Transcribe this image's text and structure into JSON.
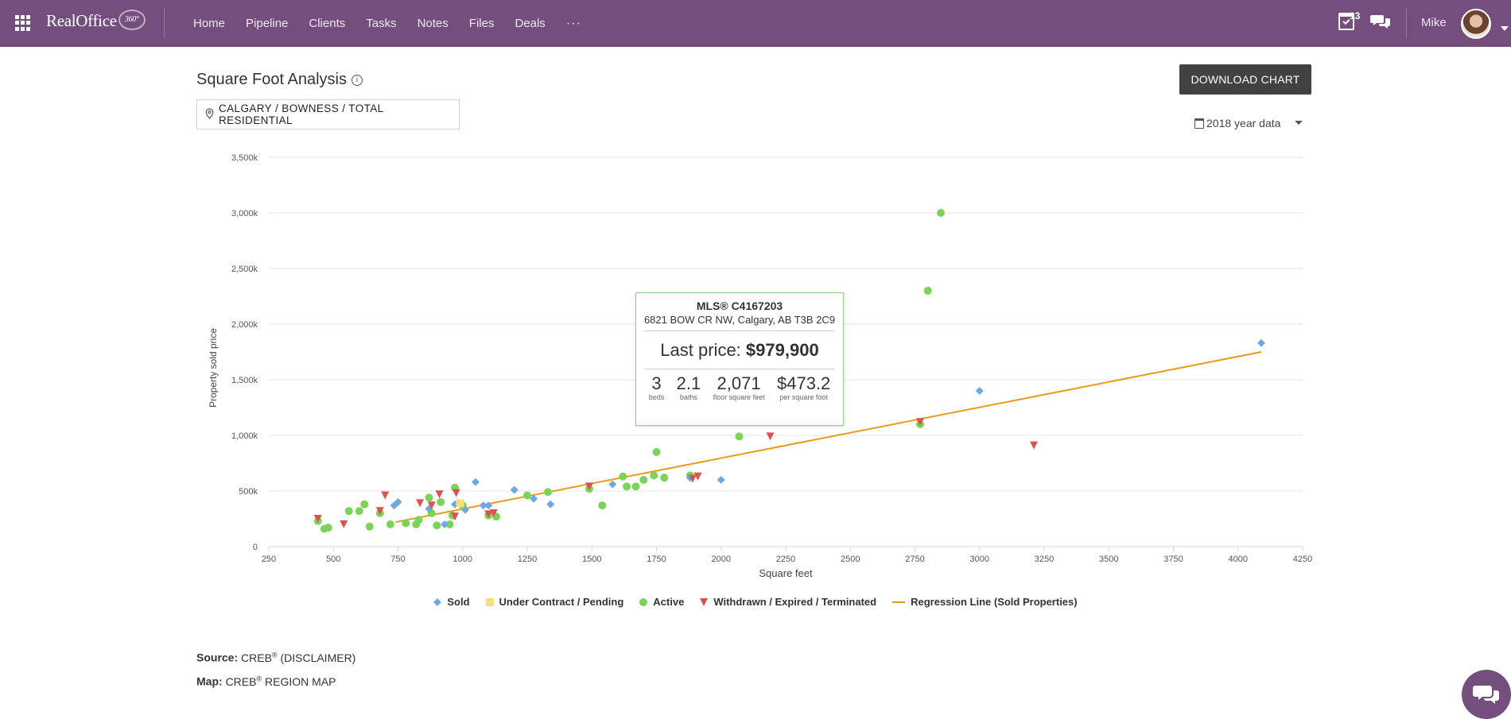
{
  "header": {
    "brand_name": "RealOffice",
    "brand_badge": "360°",
    "nav": [
      "Home",
      "Pipeline",
      "Clients",
      "Tasks",
      "Notes",
      "Files",
      "Deals"
    ],
    "more_label": "···",
    "notification_count": "13",
    "user_name": "Mike",
    "icons": [
      "apps-grid-icon",
      "calendar-check-icon",
      "chat-bubbles-icon",
      "avatar",
      "chevron-down-icon"
    ]
  },
  "page": {
    "title": "Square Foot Analysis",
    "download_label": "DOWNLOAD CHART",
    "location": "CALGARY / BOWNESS / TOTAL RESIDENTIAL",
    "year_label": "2018 year data"
  },
  "tooltip": {
    "mls": "MLS® C4167203",
    "address": "6821 BOW CR NW, Calgary, AB T3B 2C9",
    "price_label": "Last price:",
    "price_value": "$979,900",
    "beds": "3",
    "beds_label": "beds",
    "baths": "2.1",
    "baths_label": "baths",
    "sqft": "2,071",
    "sqft_label": "floor square feet",
    "ppsf": "$473.2",
    "ppsf_label": "per square foot"
  },
  "footer": {
    "source_label": "Source:",
    "source_text": "CREB",
    "source_sup": "®",
    "source_suffix": " (DISCLAIMER)",
    "map_label": "Map:",
    "map_text": "CREB",
    "map_sup": "®",
    "map_suffix": " REGION MAP"
  },
  "colors": {
    "header": "#744f7e",
    "sold": "#6ea8e0",
    "pending": "#f5e07a",
    "active": "#7dd35a",
    "withdrawn": "#d9534f",
    "regression": "#e89b1a"
  },
  "chart_data": {
    "type": "scatter",
    "xlabel": "Square feet",
    "ylabel": "Property sold price",
    "xlim": [
      250,
      4250
    ],
    "ylim": [
      0,
      3500000
    ],
    "x_ticks": [
      250,
      500,
      750,
      1000,
      1250,
      1500,
      1750,
      2000,
      2250,
      2500,
      2750,
      3000,
      3250,
      3500,
      3750,
      4000,
      4250
    ],
    "y_ticks": [
      0,
      500000,
      1000000,
      1500000,
      2000000,
      2500000,
      3000000,
      3500000
    ],
    "y_tick_labels": [
      "0",
      "500k",
      "1,000k",
      "1,500k",
      "2,000k",
      "2,500k",
      "3,000k",
      "3,500k"
    ],
    "grid": "horizontal",
    "legend": "bottom-center",
    "series": [
      {
        "name": "Sold",
        "marker": "diamond",
        "points": [
          [
            735,
            370000
          ],
          [
            750,
            400000
          ],
          [
            870,
            340000
          ],
          [
            930,
            200000
          ],
          [
            970,
            380000
          ],
          [
            1010,
            330000
          ],
          [
            1050,
            580000
          ],
          [
            1080,
            370000
          ],
          [
            1100,
            370000
          ],
          [
            1200,
            510000
          ],
          [
            1275,
            430000
          ],
          [
            1340,
            380000
          ],
          [
            1580,
            560000
          ],
          [
            1880,
            620000
          ],
          [
            2000,
            600000
          ],
          [
            3000,
            1400000
          ],
          [
            4090,
            1830000
          ]
        ]
      },
      {
        "name": "Under Contract / Pending",
        "marker": "square",
        "points": [
          [
            990,
            390000
          ]
        ]
      },
      {
        "name": "Active",
        "marker": "circle",
        "points": [
          [
            440,
            230000
          ],
          [
            465,
            160000
          ],
          [
            480,
            170000
          ],
          [
            560,
            320000
          ],
          [
            600,
            320000
          ],
          [
            620,
            380000
          ],
          [
            640,
            180000
          ],
          [
            680,
            300000
          ],
          [
            720,
            200000
          ],
          [
            780,
            210000
          ],
          [
            820,
            200000
          ],
          [
            830,
            240000
          ],
          [
            870,
            440000
          ],
          [
            880,
            300000
          ],
          [
            900,
            190000
          ],
          [
            915,
            400000
          ],
          [
            950,
            200000
          ],
          [
            960,
            280000
          ],
          [
            970,
            530000
          ],
          [
            1000,
            370000
          ],
          [
            1100,
            280000
          ],
          [
            1130,
            270000
          ],
          [
            1250,
            460000
          ],
          [
            1330,
            490000
          ],
          [
            1490,
            520000
          ],
          [
            1540,
            370000
          ],
          [
            1620,
            630000
          ],
          [
            1635,
            540000
          ],
          [
            1670,
            540000
          ],
          [
            1700,
            600000
          ],
          [
            1740,
            640000
          ],
          [
            1750,
            850000
          ],
          [
            1780,
            620000
          ],
          [
            1880,
            640000
          ],
          [
            2070,
            990000
          ],
          [
            2770,
            1100000
          ],
          [
            2800,
            2300000
          ],
          [
            2850,
            3000000
          ]
        ]
      },
      {
        "name": "Withdrawn / Expired / Terminated",
        "marker": "triangle-down",
        "points": [
          [
            440,
            250000
          ],
          [
            540,
            200000
          ],
          [
            680,
            320000
          ],
          [
            700,
            460000
          ],
          [
            835,
            390000
          ],
          [
            880,
            370000
          ],
          [
            910,
            470000
          ],
          [
            970,
            270000
          ],
          [
            975,
            480000
          ],
          [
            1100,
            290000
          ],
          [
            1120,
            300000
          ],
          [
            1490,
            540000
          ],
          [
            1890,
            610000
          ],
          [
            1910,
            630000
          ],
          [
            2190,
            990000
          ],
          [
            2770,
            1120000
          ],
          [
            3210,
            910000
          ]
        ]
      },
      {
        "name": "Regression Line (Sold Properties)",
        "marker": "line",
        "points": [
          [
            740,
            220000
          ],
          [
            4090,
            1750000
          ]
        ]
      }
    ],
    "highlight": {
      "x": 2071,
      "y": 979900
    }
  }
}
